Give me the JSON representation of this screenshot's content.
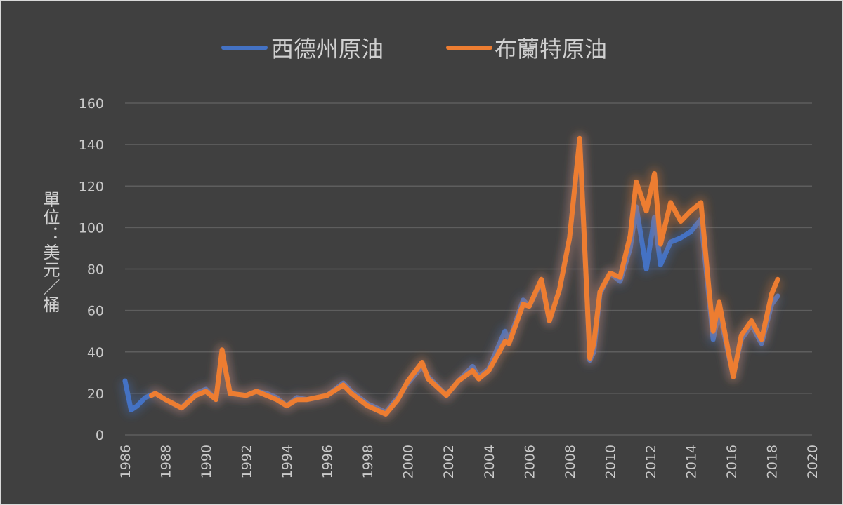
{
  "chart_data": {
    "type": "line",
    "title": "",
    "xlabel": "",
    "ylabel": "單位：美元／桶",
    "xlim": [
      1986,
      2020
    ],
    "ylim": [
      0,
      160
    ],
    "xticks": [
      "1986",
      "1988",
      "1990",
      "1992",
      "1994",
      "1996",
      "1998",
      "2000",
      "2002",
      "2004",
      "2006",
      "2008",
      "2010",
      "2012",
      "2014",
      "2016",
      "2018",
      "2020"
    ],
    "yticks": [
      "0",
      "20",
      "40",
      "60",
      "80",
      "100",
      "120",
      "140",
      "160"
    ],
    "grid": true,
    "legend_position": "top",
    "series": [
      {
        "name": "西德州原油",
        "color": "#4472c4",
        "x": [
          1986.0,
          1986.3,
          1986.6,
          1987.0,
          1987.5,
          1988.0,
          1988.8,
          1989.5,
          1990.0,
          1990.5,
          1990.8,
          1991.0,
          1991.2,
          1992.0,
          1992.5,
          1993.0,
          1993.5,
          1994.0,
          1994.5,
          1995.0,
          1996.0,
          1996.8,
          1997.2,
          1998.0,
          1998.9,
          1999.5,
          2000.0,
          2000.7,
          2001.0,
          2001.9,
          2002.5,
          2003.2,
          2003.5,
          2004.0,
          2004.8,
          2005.0,
          2005.7,
          2006.0,
          2006.6,
          2007.0,
          2007.5,
          2008.0,
          2008.5,
          2008.8,
          2009.0,
          2009.2,
          2009.5,
          2010.0,
          2010.5,
          2011.0,
          2011.3,
          2011.8,
          2012.2,
          2012.5,
          2013.0,
          2013.5,
          2014.0,
          2014.5,
          2014.9,
          2015.1,
          2015.4,
          2015.9,
          2016.1,
          2016.5,
          2017.0,
          2017.5,
          2018.0,
          2018.3
        ],
        "y": [
          26,
          12,
          14,
          18,
          20,
          17,
          13,
          20,
          22,
          17,
          40,
          30,
          20,
          19,
          21,
          20,
          18,
          14,
          18,
          17,
          19,
          25,
          21,
          15,
          11,
          18,
          25,
          33,
          28,
          19,
          26,
          33,
          28,
          32,
          50,
          45,
          65,
          62,
          74,
          55,
          70,
          95,
          142,
          80,
          36,
          40,
          68,
          78,
          74,
          90,
          110,
          80,
          105,
          82,
          93,
          95,
          98,
          104,
          66,
          46,
          60,
          37,
          29,
          46,
          53,
          44,
          63,
          67
        ]
      },
      {
        "name": "布蘭特原油",
        "color": "#ed7d31",
        "x": [
          1987.3,
          1987.5,
          1988.0,
          1988.8,
          1989.5,
          1990.0,
          1990.5,
          1990.8,
          1991.0,
          1991.2,
          1992.0,
          1992.5,
          1993.0,
          1993.5,
          1994.0,
          1994.5,
          1995.0,
          1996.0,
          1996.8,
          1997.2,
          1998.0,
          1998.9,
          1999.5,
          2000.0,
          2000.7,
          2001.0,
          2001.9,
          2002.5,
          2003.2,
          2003.5,
          2004.0,
          2004.8,
          2005.0,
          2005.7,
          2006.0,
          2006.6,
          2007.0,
          2007.5,
          2008.0,
          2008.5,
          2008.8,
          2009.0,
          2009.2,
          2009.5,
          2010.0,
          2010.5,
          2011.0,
          2011.3,
          2011.8,
          2012.2,
          2012.5,
          2013.0,
          2013.5,
          2014.0,
          2014.5,
          2014.9,
          2015.1,
          2015.4,
          2015.9,
          2016.1,
          2016.5,
          2017.0,
          2017.5,
          2018.0,
          2018.3
        ],
        "y": [
          19,
          20,
          17,
          13,
          19,
          21,
          17,
          41,
          30,
          20,
          19,
          21,
          19,
          17,
          14,
          17,
          17,
          19,
          24,
          20,
          14,
          10,
          17,
          26,
          35,
          27,
          19,
          26,
          31,
          27,
          31,
          45,
          44,
          63,
          62,
          75,
          55,
          70,
          95,
          143,
          80,
          37,
          44,
          69,
          78,
          76,
          96,
          122,
          108,
          126,
          92,
          112,
          103,
          108,
          112,
          70,
          50,
          64,
          38,
          28,
          48,
          55,
          46,
          68,
          75
        ]
      }
    ]
  }
}
